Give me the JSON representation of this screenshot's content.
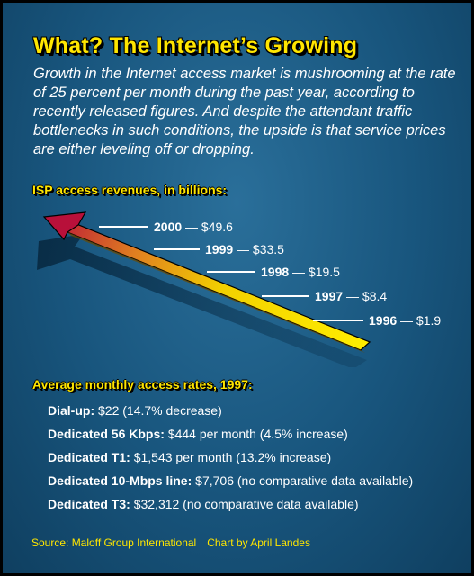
{
  "title": "What? The Internet’s Growing",
  "intro": "Growth in the Internet access market is mushrooming at the rate of 25 percent per month during the past year, according to recently released figures. And despite the attendant traffic bottlenecks in such conditions, the upside is that service prices are either leveling off or dropping.",
  "chart_data": {
    "type": "line",
    "title": "ISP access revenues, in billions:",
    "series": [
      {
        "values": [
          1.9,
          8.4,
          19.5,
          33.5,
          49.6
        ]
      }
    ],
    "categories": [
      "1996",
      "1997",
      "1998",
      "1999",
      "2000"
    ],
    "labels": [
      "— $1.9",
      "— $8.4",
      "— $19.5",
      "— $33.5",
      "— $49.6"
    ]
  },
  "rates": {
    "heading": "Average monthly access rates, 1997:",
    "items": [
      {
        "label": "Dial-up:",
        "value": "$22 (14.7% decrease)"
      },
      {
        "label": "Dedicated 56 Kbps:",
        "value": "$444 per month (4.5% increase)"
      },
      {
        "label": "Dedicated T1:",
        "value": "$1,543 per month (13.2% increase)"
      },
      {
        "label": "Dedicated 10-Mbps line:",
        "value": "$7,706 (no comparative data available)"
      },
      {
        "label": "Dedicated T3:",
        "value": "$32,312 (no comparative data available)"
      }
    ]
  },
  "credits": {
    "source": "Source: Maloff Group International",
    "author": "Chart by April Landes"
  },
  "colors": {
    "background": "#18557d",
    "accent_yellow": "#ffe600",
    "arrow_tail": "#ffee00",
    "arrow_head": "#b8103a",
    "text": "#ffffff"
  }
}
